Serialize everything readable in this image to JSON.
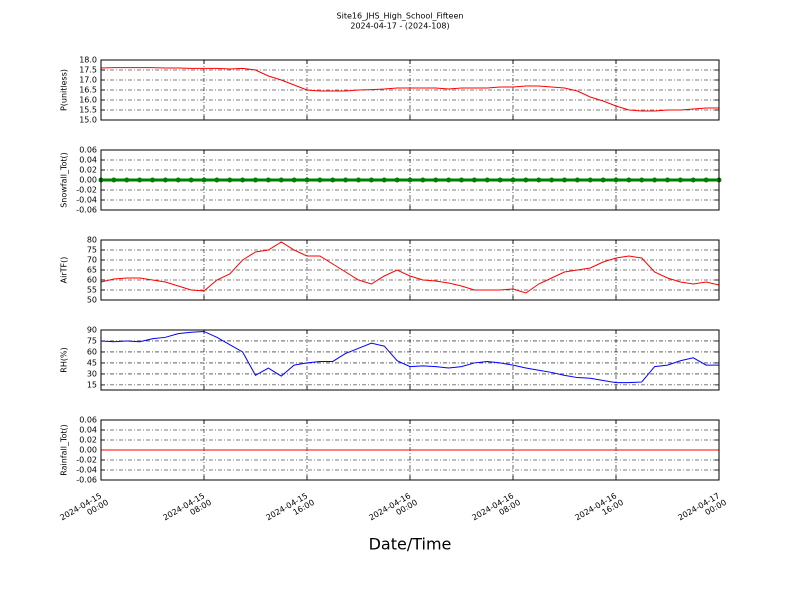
{
  "chart_data": [
    {
      "type": "line",
      "title": "Site16_JHS_High_School_Fifteen",
      "subtitle": "2024-04-17 - (2024-108)",
      "ylabel": "P(unitless)",
      "x": [
        "2024-04-15 00:00",
        "2024-04-15 01:00",
        "2024-04-15 02:00",
        "2024-04-15 03:00",
        "2024-04-15 04:00",
        "2024-04-15 05:00",
        "2024-04-15 06:00",
        "2024-04-15 07:00",
        "2024-04-15 08:00",
        "2024-04-15 09:00",
        "2024-04-15 10:00",
        "2024-04-15 11:00",
        "2024-04-15 12:00",
        "2024-04-15 13:00",
        "2024-04-15 14:00",
        "2024-04-15 15:00",
        "2024-04-15 16:00",
        "2024-04-15 17:00",
        "2024-04-15 18:00",
        "2024-04-15 19:00",
        "2024-04-15 20:00",
        "2024-04-15 21:00",
        "2024-04-15 22:00",
        "2024-04-15 23:00",
        "2024-04-16 00:00",
        "2024-04-16 01:00",
        "2024-04-16 02:00",
        "2024-04-16 03:00",
        "2024-04-16 04:00",
        "2024-04-16 05:00",
        "2024-04-16 06:00",
        "2024-04-16 07:00",
        "2024-04-16 08:00",
        "2024-04-16 09:00",
        "2024-04-16 10:00",
        "2024-04-16 11:00",
        "2024-04-16 12:00",
        "2024-04-16 13:00",
        "2024-04-16 14:00",
        "2024-04-16 15:00",
        "2024-04-16 16:00",
        "2024-04-16 17:00",
        "2024-04-16 18:00",
        "2024-04-16 19:00",
        "2024-04-16 20:00",
        "2024-04-16 21:00",
        "2024-04-16 22:00",
        "2024-04-16 23:00",
        "2024-04-17 00:00"
      ],
      "series": [
        {
          "color": "#ff0000",
          "values": [
            17.6,
            17.62,
            17.62,
            17.62,
            17.62,
            17.6,
            17.6,
            17.58,
            17.58,
            17.58,
            17.55,
            17.58,
            17.5,
            17.2,
            17.0,
            16.75,
            16.5,
            16.45,
            16.45,
            16.45,
            16.5,
            16.52,
            16.55,
            16.6,
            16.6,
            16.6,
            16.6,
            16.55,
            16.6,
            16.6,
            16.6,
            16.65,
            16.65,
            16.7,
            16.7,
            16.65,
            16.6,
            16.45,
            16.15,
            15.95,
            15.7,
            15.5,
            15.45,
            15.45,
            15.5,
            15.5,
            15.55,
            15.6,
            15.6
          ]
        }
      ],
      "ylim": [
        15,
        18
      ],
      "yticks": [
        {
          "value": 15,
          "label": "15.0"
        },
        15.5,
        {
          "value": 16,
          "label": "16.0"
        },
        16.5,
        {
          "value": 17,
          "label": "17.0"
        },
        17.5,
        {
          "value": 18,
          "label": "18.0"
        }
      ],
      "xlim": [
        "2024-04-15 00:00",
        "2024-04-17 00:00"
      ],
      "xticks": [
        "2024-04-15 00:00",
        "2024-04-15 08:00",
        "2024-04-15 16:00",
        "2024-04-16 00:00",
        "2024-04-16 08:00",
        "2024-04-16 16:00",
        "2024-04-17 00:00"
      ],
      "grid": true
    },
    {
      "type": "line",
      "ylabel": "Snowfall_Tot()",
      "x": [
        "2024-04-15 00:00",
        "2024-04-15 01:00",
        "2024-04-15 02:00",
        "2024-04-15 03:00",
        "2024-04-15 04:00",
        "2024-04-15 05:00",
        "2024-04-15 06:00",
        "2024-04-15 07:00",
        "2024-04-15 08:00",
        "2024-04-15 09:00",
        "2024-04-15 10:00",
        "2024-04-15 11:00",
        "2024-04-15 12:00",
        "2024-04-15 13:00",
        "2024-04-15 14:00",
        "2024-04-15 15:00",
        "2024-04-15 16:00",
        "2024-04-15 17:00",
        "2024-04-15 18:00",
        "2024-04-15 19:00",
        "2024-04-15 20:00",
        "2024-04-15 21:00",
        "2024-04-15 22:00",
        "2024-04-15 23:00",
        "2024-04-16 00:00",
        "2024-04-16 01:00",
        "2024-04-16 02:00",
        "2024-04-16 03:00",
        "2024-04-16 04:00",
        "2024-04-16 05:00",
        "2024-04-16 06:00",
        "2024-04-16 07:00",
        "2024-04-16 08:00",
        "2024-04-16 09:00",
        "2024-04-16 10:00",
        "2024-04-16 11:00",
        "2024-04-16 12:00",
        "2024-04-16 13:00",
        "2024-04-16 14:00",
        "2024-04-16 15:00",
        "2024-04-16 16:00",
        "2024-04-16 17:00",
        "2024-04-16 18:00",
        "2024-04-16 19:00",
        "2024-04-16 20:00",
        "2024-04-16 21:00",
        "2024-04-16 22:00",
        "2024-04-16 23:00",
        "2024-04-17 00:00"
      ],
      "series": [
        {
          "color": "#008000",
          "marker": true,
          "values": [
            0,
            0,
            0,
            0,
            0,
            0,
            0,
            0,
            0,
            0,
            0,
            0,
            0,
            0,
            0,
            0,
            0,
            0,
            0,
            0,
            0,
            0,
            0,
            0,
            0,
            0,
            0,
            0,
            0,
            0,
            0,
            0,
            0,
            0,
            0,
            0,
            0,
            0,
            0,
            0,
            0,
            0,
            0,
            0,
            0,
            0,
            0,
            0,
            0
          ]
        }
      ],
      "ylim": [
        -0.06,
        0.06
      ],
      "yticks": [
        -0.06,
        -0.04,
        -0.02,
        {
          "value": 0,
          "label": "0.00"
        },
        0.02,
        0.04,
        0.06
      ],
      "xlim": [
        "2024-04-15 00:00",
        "2024-04-17 00:00"
      ],
      "xticks": [
        "2024-04-15 00:00",
        "2024-04-15 08:00",
        "2024-04-15 16:00",
        "2024-04-16 00:00",
        "2024-04-16 08:00",
        "2024-04-16 16:00",
        "2024-04-17 00:00"
      ],
      "grid": true
    },
    {
      "type": "line",
      "ylabel": "AirTF()",
      "x": [
        "2024-04-15 00:00",
        "2024-04-15 01:00",
        "2024-04-15 02:00",
        "2024-04-15 03:00",
        "2024-04-15 04:00",
        "2024-04-15 05:00",
        "2024-04-15 06:00",
        "2024-04-15 07:00",
        "2024-04-15 08:00",
        "2024-04-15 09:00",
        "2024-04-15 10:00",
        "2024-04-15 11:00",
        "2024-04-15 12:00",
        "2024-04-15 13:00",
        "2024-04-15 14:00",
        "2024-04-15 15:00",
        "2024-04-15 16:00",
        "2024-04-15 17:00",
        "2024-04-15 18:00",
        "2024-04-15 19:00",
        "2024-04-15 20:00",
        "2024-04-15 21:00",
        "2024-04-15 22:00",
        "2024-04-15 23:00",
        "2024-04-16 00:00",
        "2024-04-16 01:00",
        "2024-04-16 02:00",
        "2024-04-16 03:00",
        "2024-04-16 04:00",
        "2024-04-16 05:00",
        "2024-04-16 06:00",
        "2024-04-16 07:00",
        "2024-04-16 08:00",
        "2024-04-16 09:00",
        "2024-04-16 10:00",
        "2024-04-16 11:00",
        "2024-04-16 12:00",
        "2024-04-16 13:00",
        "2024-04-16 14:00",
        "2024-04-16 15:00",
        "2024-04-16 16:00",
        "2024-04-16 17:00",
        "2024-04-16 18:00",
        "2024-04-16 19:00",
        "2024-04-16 20:00",
        "2024-04-16 21:00",
        "2024-04-16 22:00",
        "2024-04-16 23:00",
        "2024-04-17 00:00"
      ],
      "series": [
        {
          "color": "#ff0000",
          "values": [
            59,
            60.5,
            61,
            61,
            60,
            59,
            57,
            55,
            54.5,
            60,
            63,
            70,
            74,
            75,
            79,
            75,
            72,
            72,
            68,
            64,
            60,
            58,
            62,
            65,
            62,
            60,
            59.5,
            58.5,
            57,
            55,
            55,
            55,
            55.5,
            53.5,
            58,
            61,
            64,
            65,
            66,
            69,
            71,
            72,
            71,
            64,
            61,
            59,
            58,
            59,
            57.5
          ]
        }
      ],
      "ylim": [
        50,
        80
      ],
      "yticks": [
        50,
        55,
        60,
        65,
        70,
        75,
        80
      ],
      "xlim": [
        "2024-04-15 00:00",
        "2024-04-17 00:00"
      ],
      "xticks": [
        "2024-04-15 00:00",
        "2024-04-15 08:00",
        "2024-04-15 16:00",
        "2024-04-16 00:00",
        "2024-04-16 08:00",
        "2024-04-16 16:00",
        "2024-04-17 00:00"
      ],
      "grid": true
    },
    {
      "type": "line",
      "ylabel": "RH(%)",
      "x": [
        "2024-04-15 00:00",
        "2024-04-15 01:00",
        "2024-04-15 02:00",
        "2024-04-15 03:00",
        "2024-04-15 04:00",
        "2024-04-15 05:00",
        "2024-04-15 06:00",
        "2024-04-15 07:00",
        "2024-04-15 08:00",
        "2024-04-15 09:00",
        "2024-04-15 10:00",
        "2024-04-15 11:00",
        "2024-04-15 12:00",
        "2024-04-15 13:00",
        "2024-04-15 14:00",
        "2024-04-15 15:00",
        "2024-04-15 16:00",
        "2024-04-15 17:00",
        "2024-04-15 18:00",
        "2024-04-15 19:00",
        "2024-04-15 20:00",
        "2024-04-15 21:00",
        "2024-04-15 22:00",
        "2024-04-15 23:00",
        "2024-04-16 00:00",
        "2024-04-16 01:00",
        "2024-04-16 02:00",
        "2024-04-16 03:00",
        "2024-04-16 04:00",
        "2024-04-16 05:00",
        "2024-04-16 06:00",
        "2024-04-16 07:00",
        "2024-04-16 08:00",
        "2024-04-16 09:00",
        "2024-04-16 10:00",
        "2024-04-16 11:00",
        "2024-04-16 12:00",
        "2024-04-16 13:00",
        "2024-04-16 14:00",
        "2024-04-16 15:00",
        "2024-04-16 16:00",
        "2024-04-16 17:00",
        "2024-04-16 18:00",
        "2024-04-16 19:00",
        "2024-04-16 20:00",
        "2024-04-16 21:00",
        "2024-04-16 22:00",
        "2024-04-16 23:00",
        "2024-04-17 00:00"
      ],
      "series": [
        {
          "color": "#0000ff",
          "values": [
            75,
            74,
            75,
            74,
            78,
            80,
            85,
            87,
            88,
            80,
            70,
            60,
            28,
            38,
            27,
            42,
            45,
            47,
            47,
            58,
            65,
            72,
            68,
            48,
            40,
            41,
            40,
            38,
            40,
            45,
            47,
            45,
            42,
            38,
            35,
            32,
            28,
            25,
            24,
            21,
            18,
            18,
            19,
            40,
            42,
            48,
            52,
            42,
            42
          ]
        }
      ],
      "ylim": [
        8,
        90
      ],
      "yticks": [
        15,
        30,
        45,
        60,
        75,
        90
      ],
      "xlim": [
        "2024-04-15 00:00",
        "2024-04-17 00:00"
      ],
      "xticks": [
        "2024-04-15 00:00",
        "2024-04-15 08:00",
        "2024-04-15 16:00",
        "2024-04-16 00:00",
        "2024-04-16 08:00",
        "2024-04-16 16:00",
        "2024-04-17 00:00"
      ],
      "grid": true
    },
    {
      "type": "line",
      "ylabel": "Rainfall_Tot()",
      "xlabel": "Date/Time",
      "x": [
        "2024-04-15 00:00",
        "2024-04-15 01:00",
        "2024-04-15 02:00",
        "2024-04-15 03:00",
        "2024-04-15 04:00",
        "2024-04-15 05:00",
        "2024-04-15 06:00",
        "2024-04-15 07:00",
        "2024-04-15 08:00",
        "2024-04-15 09:00",
        "2024-04-15 10:00",
        "2024-04-15 11:00",
        "2024-04-15 12:00",
        "2024-04-15 13:00",
        "2024-04-15 14:00",
        "2024-04-15 15:00",
        "2024-04-15 16:00",
        "2024-04-15 17:00",
        "2024-04-15 18:00",
        "2024-04-15 19:00",
        "2024-04-15 20:00",
        "2024-04-15 21:00",
        "2024-04-15 22:00",
        "2024-04-15 23:00",
        "2024-04-16 00:00",
        "2024-04-16 01:00",
        "2024-04-16 02:00",
        "2024-04-16 03:00",
        "2024-04-16 04:00",
        "2024-04-16 05:00",
        "2024-04-16 06:00",
        "2024-04-16 07:00",
        "2024-04-16 08:00",
        "2024-04-16 09:00",
        "2024-04-16 10:00",
        "2024-04-16 11:00",
        "2024-04-16 12:00",
        "2024-04-16 13:00",
        "2024-04-16 14:00",
        "2024-04-16 15:00",
        "2024-04-16 16:00",
        "2024-04-16 17:00",
        "2024-04-16 18:00",
        "2024-04-16 19:00",
        "2024-04-16 20:00",
        "2024-04-16 21:00",
        "2024-04-16 22:00",
        "2024-04-16 23:00",
        "2024-04-17 00:00"
      ],
      "series": [
        {
          "color": "#ff0000",
          "values": [
            0,
            0,
            0,
            0,
            0,
            0,
            0,
            0,
            0,
            0,
            0,
            0,
            0,
            0,
            0,
            0,
            0,
            0,
            0,
            0,
            0,
            0,
            0,
            0,
            0,
            0,
            0,
            0,
            0,
            0,
            0,
            0,
            0,
            0,
            0,
            0,
            0,
            0,
            0,
            0,
            0,
            0,
            0,
            0,
            0,
            0,
            0,
            0,
            0
          ]
        }
      ],
      "ylim": [
        -0.06,
        0.06
      ],
      "yticks": [
        -0.06,
        -0.04,
        -0.02,
        {
          "value": 0,
          "label": "0.00"
        },
        0.02,
        0.04,
        0.06
      ],
      "xlim": [
        "2024-04-15 00:00",
        "2024-04-17 00:00"
      ],
      "xticks": [
        "2024-04-15 00:00",
        "2024-04-15 08:00",
        "2024-04-15 16:00",
        "2024-04-16 00:00",
        "2024-04-16 08:00",
        "2024-04-16 16:00",
        "2024-04-17 00:00"
      ],
      "grid": true
    }
  ]
}
